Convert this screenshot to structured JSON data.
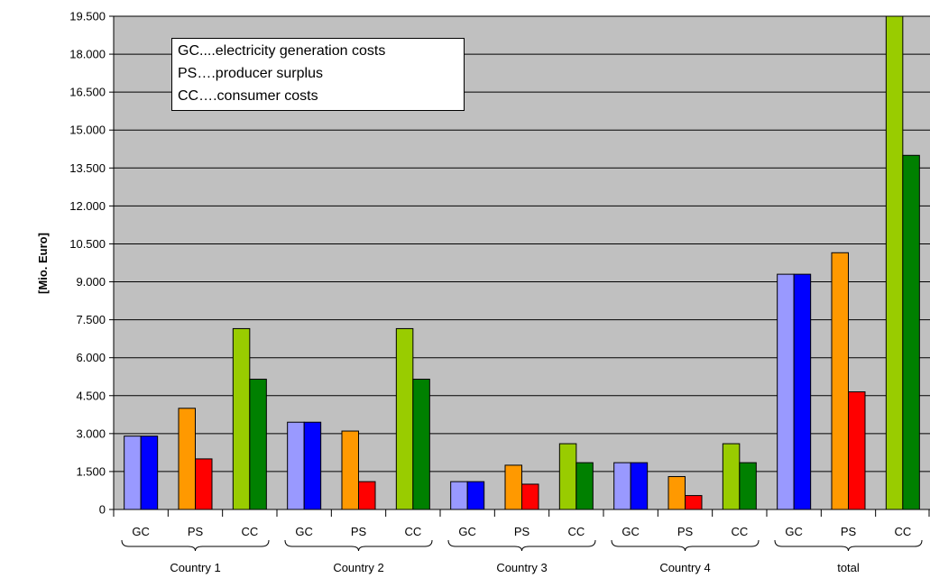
{
  "chart_data": {
    "type": "bar",
    "ylabel": "[Mio. Euro]",
    "ylim": [
      0,
      19500
    ],
    "y_ticks": [
      "0",
      "1.500",
      "3.000",
      "4.500",
      "6.000",
      "7.500",
      "9.000",
      "10.500",
      "12.000",
      "13.500",
      "15.000",
      "16.500",
      "18.000",
      "19.500"
    ],
    "grid": true,
    "groups": [
      {
        "label": "Country 1",
        "subgroups": [
          {
            "label": "GC",
            "values": [
              2900,
              2900
            ]
          },
          {
            "label": "PS",
            "values": [
              4000,
              2000
            ]
          },
          {
            "label": "CC",
            "values": [
              7150,
              5150
            ]
          }
        ]
      },
      {
        "label": "Country 2",
        "subgroups": [
          {
            "label": "GC",
            "values": [
              3450,
              3450
            ]
          },
          {
            "label": "PS",
            "values": [
              3100,
              1100
            ]
          },
          {
            "label": "CC",
            "values": [
              7150,
              5150
            ]
          }
        ]
      },
      {
        "label": "Country 3",
        "subgroups": [
          {
            "label": "GC",
            "values": [
              1100,
              1100
            ]
          },
          {
            "label": "PS",
            "values": [
              1750,
              1000
            ]
          },
          {
            "label": "CC",
            "values": [
              2600,
              1850
            ]
          }
        ]
      },
      {
        "label": "Country 4",
        "subgroups": [
          {
            "label": "GC",
            "values": [
              1850,
              1850
            ]
          },
          {
            "label": "PS",
            "values": [
              1300,
              550
            ]
          },
          {
            "label": "CC",
            "values": [
              2600,
              1850
            ]
          }
        ]
      },
      {
        "label": "total",
        "subgroups": [
          {
            "label": "GC",
            "values": [
              9300,
              9300
            ]
          },
          {
            "label": "PS",
            "values": [
              10150,
              4650
            ]
          },
          {
            "label": "CC",
            "values": [
              19500,
              14000
            ]
          }
        ]
      }
    ],
    "annotation": [
      "GC....electricity generation costs",
      "PS….producer surplus",
      "CC….consumer costs"
    ],
    "colors": {
      "plot_bg": "#c0c0c0",
      "GC": [
        "#9999ff",
        "#0000ff"
      ],
      "PS": [
        "#ff9900",
        "#ff0000"
      ],
      "CC": [
        "#99cc00",
        "#008000"
      ]
    }
  }
}
